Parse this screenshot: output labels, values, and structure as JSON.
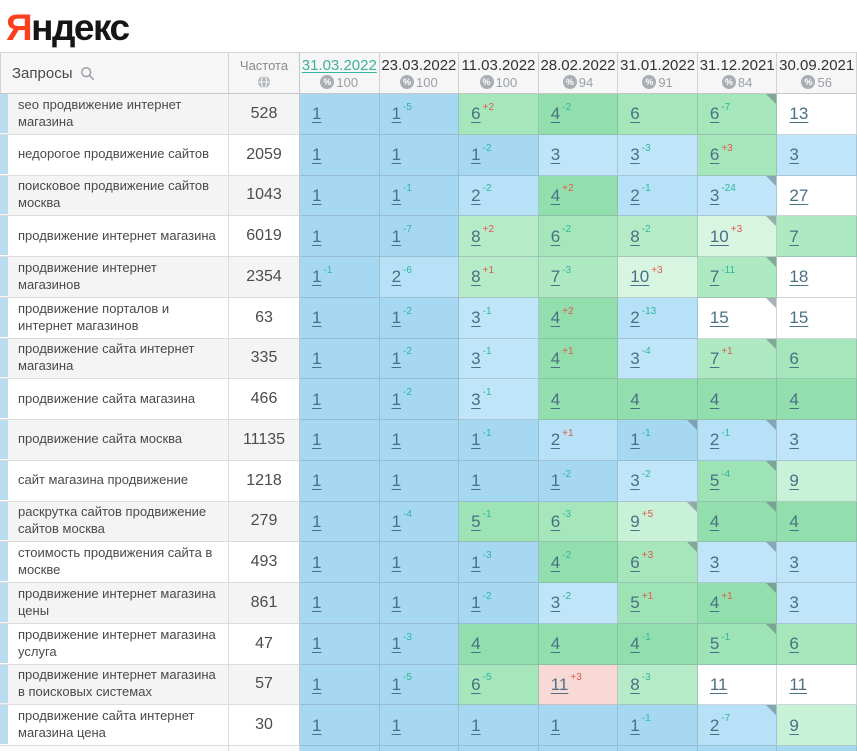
{
  "logo": {
    "first_letter": "Я",
    "rest": "ндекс"
  },
  "table": {
    "queries_header": "Запросы",
    "frequency_header": "Частота",
    "columns": [
      {
        "date": "31.03.2022",
        "percent": "100",
        "active": true
      },
      {
        "date": "23.03.2022",
        "percent": "100",
        "active": false
      },
      {
        "date": "11.03.2022",
        "percent": "100",
        "active": false
      },
      {
        "date": "28.02.2022",
        "percent": "94",
        "active": false
      },
      {
        "date": "31.01.2022",
        "percent": "91",
        "active": false
      },
      {
        "date": "31.12.2021",
        "percent": "84",
        "active": false
      },
      {
        "date": "30.09.2021",
        "percent": "56",
        "active": false
      }
    ],
    "rows": [
      {
        "query": "seo продвижение интернет магазина",
        "frequency": "528",
        "cells": [
          {
            "pos": "1"
          },
          {
            "pos": "1",
            "chg": "-5"
          },
          {
            "pos": "6",
            "chg": "+2"
          },
          {
            "pos": "4",
            "chg": "-2"
          },
          {
            "pos": "6"
          },
          {
            "pos": "6",
            "chg": "-7",
            "note": true
          },
          {
            "pos": "13"
          }
        ]
      },
      {
        "query": "недорогое продвижение сайтов",
        "frequency": "2059",
        "cells": [
          {
            "pos": "1"
          },
          {
            "pos": "1"
          },
          {
            "pos": "1",
            "chg": "-2"
          },
          {
            "pos": "3"
          },
          {
            "pos": "3",
            "chg": "-3"
          },
          {
            "pos": "6",
            "chg": "+3"
          },
          {
            "pos": "3"
          }
        ]
      },
      {
        "query": "поисковое продвижение сайтов москва",
        "frequency": "1043",
        "cells": [
          {
            "pos": "1"
          },
          {
            "pos": "1",
            "chg": "-1"
          },
          {
            "pos": "2",
            "chg": "-2"
          },
          {
            "pos": "4",
            "chg": "+2"
          },
          {
            "pos": "2",
            "chg": "-1"
          },
          {
            "pos": "3",
            "chg": "-24",
            "note": true
          },
          {
            "pos": "27"
          }
        ]
      },
      {
        "query": "продвижение интернет магазина",
        "frequency": "6019",
        "cells": [
          {
            "pos": "1"
          },
          {
            "pos": "1",
            "chg": "-7"
          },
          {
            "pos": "8",
            "chg": "+2"
          },
          {
            "pos": "6",
            "chg": "-2"
          },
          {
            "pos": "8",
            "chg": "-2"
          },
          {
            "pos": "10",
            "chg": "+3",
            "note": true
          },
          {
            "pos": "7"
          }
        ]
      },
      {
        "query": "продвижение интернет магазинов",
        "frequency": "2354",
        "cells": [
          {
            "pos": "1",
            "chg": "-1"
          },
          {
            "pos": "2",
            "chg": "-6"
          },
          {
            "pos": "8",
            "chg": "+1"
          },
          {
            "pos": "7",
            "chg": "-3"
          },
          {
            "pos": "10",
            "chg": "+3"
          },
          {
            "pos": "7",
            "chg": "-11",
            "note": true
          },
          {
            "pos": "18"
          }
        ]
      },
      {
        "query": "продвижение порталов и интернет магазинов",
        "frequency": "63",
        "cells": [
          {
            "pos": "1"
          },
          {
            "pos": "1",
            "chg": "-2"
          },
          {
            "pos": "3",
            "chg": "-1"
          },
          {
            "pos": "4",
            "chg": "+2"
          },
          {
            "pos": "2",
            "chg": "-13"
          },
          {
            "pos": "15",
            "note": true
          },
          {
            "pos": "15"
          }
        ]
      },
      {
        "query": "продвижение сайта интернет магазина",
        "frequency": "335",
        "cells": [
          {
            "pos": "1"
          },
          {
            "pos": "1",
            "chg": "-2"
          },
          {
            "pos": "3",
            "chg": "-1"
          },
          {
            "pos": "4",
            "chg": "+1"
          },
          {
            "pos": "3",
            "chg": "-4"
          },
          {
            "pos": "7",
            "chg": "+1",
            "note": true
          },
          {
            "pos": "6"
          }
        ]
      },
      {
        "query": "продвижение сайта магазина",
        "frequency": "466",
        "cells": [
          {
            "pos": "1"
          },
          {
            "pos": "1",
            "chg": "-2"
          },
          {
            "pos": "3",
            "chg": "-1"
          },
          {
            "pos": "4"
          },
          {
            "pos": "4"
          },
          {
            "pos": "4"
          },
          {
            "pos": "4"
          }
        ]
      },
      {
        "query": "продвижение сайта москва",
        "frequency": "11135",
        "cells": [
          {
            "pos": "1"
          },
          {
            "pos": "1"
          },
          {
            "pos": "1",
            "chg": "-1"
          },
          {
            "pos": "2",
            "chg": "+1"
          },
          {
            "pos": "1",
            "chg": "-1",
            "note": true
          },
          {
            "pos": "2",
            "chg": "-1",
            "note": true
          },
          {
            "pos": "3"
          }
        ]
      },
      {
        "query": "сайт магазина продвижение",
        "frequency": "1218",
        "cells": [
          {
            "pos": "1"
          },
          {
            "pos": "1"
          },
          {
            "pos": "1"
          },
          {
            "pos": "1",
            "chg": "-2"
          },
          {
            "pos": "3",
            "chg": "-2"
          },
          {
            "pos": "5",
            "chg": "-4",
            "note": true
          },
          {
            "pos": "9"
          }
        ]
      },
      {
        "query": "раскрутка сайтов продвижение сайтов москва",
        "frequency": "279",
        "cells": [
          {
            "pos": "1"
          },
          {
            "pos": "1",
            "chg": "-4"
          },
          {
            "pos": "5",
            "chg": "-1"
          },
          {
            "pos": "6",
            "chg": "-3"
          },
          {
            "pos": "9",
            "chg": "+5",
            "note": true
          },
          {
            "pos": "4",
            "note": true
          },
          {
            "pos": "4"
          }
        ]
      },
      {
        "query": "стоимость продвижения сайта в москве",
        "frequency": "493",
        "cells": [
          {
            "pos": "1"
          },
          {
            "pos": "1"
          },
          {
            "pos": "1",
            "chg": "-3"
          },
          {
            "pos": "4",
            "chg": "-2"
          },
          {
            "pos": "6",
            "chg": "+3",
            "note": true
          },
          {
            "pos": "3",
            "note": true
          },
          {
            "pos": "3"
          }
        ]
      },
      {
        "query": "продвижение интернет магазина цены",
        "frequency": "861",
        "cells": [
          {
            "pos": "1"
          },
          {
            "pos": "1"
          },
          {
            "pos": "1",
            "chg": "-2"
          },
          {
            "pos": "3",
            "chg": "-2"
          },
          {
            "pos": "5",
            "chg": "+1"
          },
          {
            "pos": "4",
            "chg": "+1",
            "note": true
          },
          {
            "pos": "3"
          }
        ]
      },
      {
        "query": "продвижение интернет магазина услуга",
        "frequency": "47",
        "cells": [
          {
            "pos": "1"
          },
          {
            "pos": "1",
            "chg": "-3"
          },
          {
            "pos": "4"
          },
          {
            "pos": "4"
          },
          {
            "pos": "4",
            "chg": "-1"
          },
          {
            "pos": "5",
            "chg": "-1",
            "note": true
          },
          {
            "pos": "6"
          }
        ]
      },
      {
        "query": "продвижение интернет магазина в поисковых системах",
        "frequency": "57",
        "cells": [
          {
            "pos": "1"
          },
          {
            "pos": "1",
            "chg": "-5"
          },
          {
            "pos": "6",
            "chg": "-5"
          },
          {
            "pos": "11",
            "chg": "+3",
            "alert": true
          },
          {
            "pos": "8",
            "chg": "-3"
          },
          {
            "pos": "11"
          },
          {
            "pos": "11"
          }
        ]
      },
      {
        "query": "продвижение сайта интернет магазина цена",
        "frequency": "30",
        "cells": [
          {
            "pos": "1"
          },
          {
            "pos": "1"
          },
          {
            "pos": "1"
          },
          {
            "pos": "1"
          },
          {
            "pos": "1",
            "chg": "-1"
          },
          {
            "pos": "2",
            "chg": "-7",
            "note": true
          },
          {
            "pos": "9"
          }
        ]
      }
    ]
  },
  "colors": {
    "logo_red": "#fc3f1d",
    "active_date": "#3bb39a",
    "link": "#4a7085",
    "change_up": "#e05a4c",
    "change_down": "#2eb69c",
    "position_scale": {
      "1": "#a6d9f1",
      "2": "#b7e1f6",
      "3": "#c1e5f8",
      "4": "#92dfad",
      "5": "#9de3b6",
      "6": "#a6e6bb",
      "7": "#ade9c1",
      "8": "#b6ebc8",
      "9": "#c9f1d7",
      "10": "#d7f5e0",
      "11plus": "#ffffff",
      "alert": "#f8d9d5"
    }
  }
}
